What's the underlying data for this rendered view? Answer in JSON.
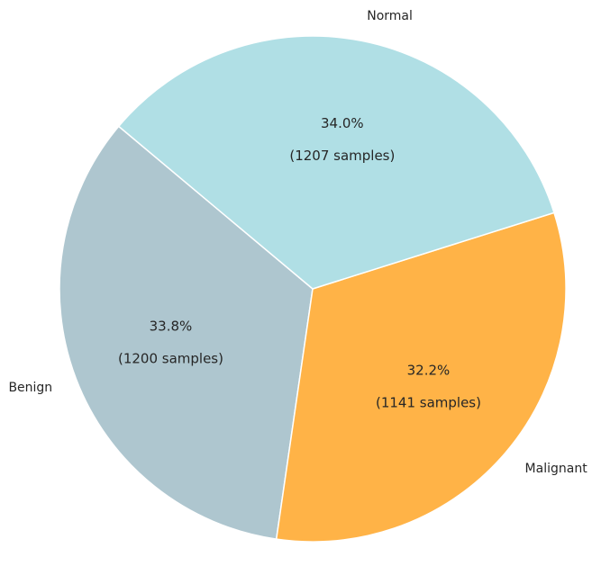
{
  "chart_data": {
    "type": "pie",
    "title": "",
    "start_angle_deg": 140,
    "direction": "counterclockwise",
    "slices": [
      {
        "label": "Benign",
        "value": 1200,
        "percent_label": "33.8%",
        "count_label": "(1200 samples)",
        "color": "#aec6cf"
      },
      {
        "label": "Malignant",
        "value": 1141,
        "percent_label": "32.2%",
        "count_label": "(1141 samples)",
        "color": "#ffb347"
      },
      {
        "label": "Normal",
        "value": 1207,
        "percent_label": "34.0%",
        "count_label": "(1207 samples)",
        "color": "#b0dfe5"
      }
    ]
  }
}
